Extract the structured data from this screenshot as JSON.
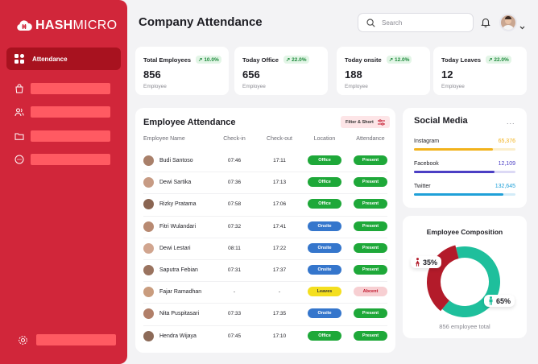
{
  "brand": {
    "logo_bold": "HASH",
    "logo_light": "MICRO"
  },
  "sidebar": {
    "active_label": "Attendance"
  },
  "header": {
    "title": "Company Attendance",
    "search_placeholder": "Search"
  },
  "stats": [
    {
      "label": "Total Employees",
      "change": "10.0%",
      "value": "856",
      "sub": "Employee"
    },
    {
      "label": "Today Office",
      "change": "22.0%",
      "value": "656",
      "sub": "Employee"
    },
    {
      "label": "Today onsite",
      "change": "12.0%",
      "value": "188",
      "sub": "Employee"
    },
    {
      "label": "Today Leaves",
      "change": "22.0%",
      "value": "12",
      "sub": "Employee"
    }
  ],
  "attendance": {
    "title": "Employee Attendance",
    "filter_label": "Filter & Short",
    "columns": [
      "Employee Name",
      "Check-in",
      "Check-out",
      "Location",
      "Attendance"
    ],
    "rows": [
      {
        "name": "Budi Santoso",
        "checkin": "07:46",
        "checkout": "17:11",
        "location": "Office",
        "status": "Present"
      },
      {
        "name": "Dewi Sartika",
        "checkin": "07:36",
        "checkout": "17:13",
        "location": "Office",
        "status": "Present"
      },
      {
        "name": "Rizky Pratama",
        "checkin": "07:58",
        "checkout": "17:06",
        "location": "Office",
        "status": "Present"
      },
      {
        "name": "Fitri Wulandari",
        "checkin": "07:32",
        "checkout": "17:41",
        "location": "Onsite",
        "status": "Present"
      },
      {
        "name": "Dewi Lestari",
        "checkin": "08:11",
        "checkout": "17:22",
        "location": "Onsite",
        "status": "Present"
      },
      {
        "name": "Saputra Febian",
        "checkin": "07:31",
        "checkout": "17:37",
        "location": "Onsite",
        "status": "Present"
      },
      {
        "name": "Fajar Ramadhan",
        "checkin": "-",
        "checkout": "-",
        "location": "Leaves",
        "status": "Abcent"
      },
      {
        "name": "Nita Puspitasari",
        "checkin": "07:33",
        "checkout": "17:35",
        "location": "Onsite",
        "status": "Present"
      },
      {
        "name": "Hendra Wijaya",
        "checkin": "07:45",
        "checkout": "17:10",
        "location": "Office",
        "status": "Present"
      }
    ]
  },
  "social": {
    "title": "Social Media",
    "more": "...",
    "items": [
      {
        "name": "Instagram",
        "value": "65,376",
        "share": 0.78,
        "color": "#f2b21b",
        "track": "#fbeecb"
      },
      {
        "name": "Facebook",
        "value": "12,109",
        "share": 0.79,
        "color": "#4b3fc4",
        "track": "#dcd9f5"
      },
      {
        "name": "Twitter",
        "value": "132,645",
        "share": 0.88,
        "color": "#1fa0d8",
        "track": "#d3ecf8"
      }
    ]
  },
  "composition": {
    "title": "Employee Composition",
    "female_pct": "35%",
    "male_pct": "65%",
    "female_share": 0.35,
    "female_color": "#b31b2a",
    "male_color": "#1ebf9c",
    "total": "856 employee total"
  }
}
